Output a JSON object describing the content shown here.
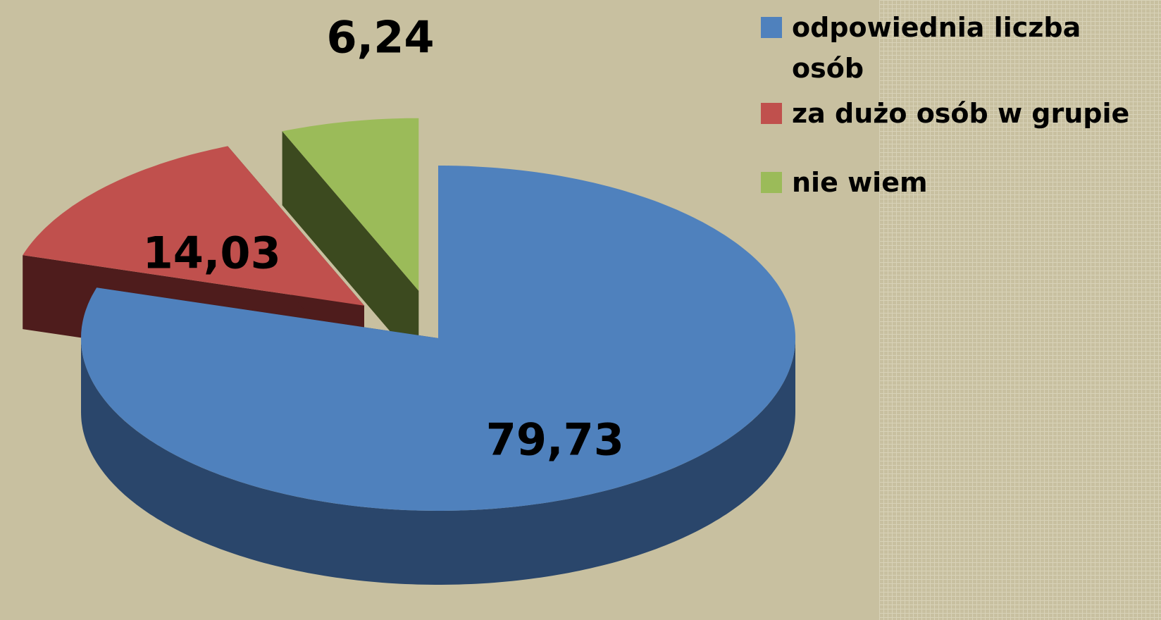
{
  "chart_data": {
    "type": "pie",
    "categories": [
      "odpowiednia liczba osób",
      "za dużo osób w grupie",
      "nie wiem"
    ],
    "values": [
      79.73,
      14.03,
      6.24
    ],
    "value_labels": [
      "79,73",
      "14,03",
      "6,24"
    ],
    "colors": [
      "#4f81bd",
      "#c0504d",
      "#9bbb59"
    ],
    "side_colors": [
      "#2a466b",
      "#4e1c1c",
      "#3c4a1f"
    ],
    "legend": "right"
  }
}
